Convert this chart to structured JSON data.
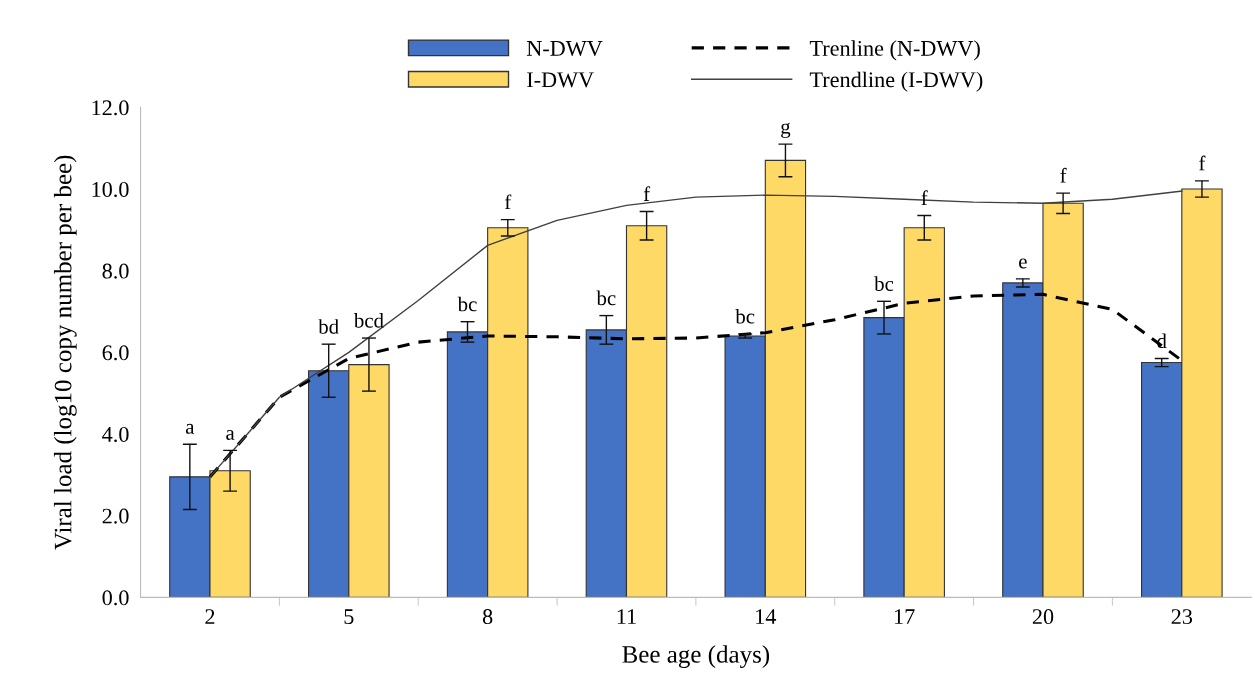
{
  "chart_data": {
    "type": "bar",
    "xlabel": "Bee age (days)",
    "ylabel": "Viral load (log10 copy number per bee)",
    "x": [
      2,
      5,
      8,
      11,
      14,
      17,
      20,
      23
    ],
    "xlim": [
      0.5,
      24.5
    ],
    "xticks": [
      2,
      5,
      8,
      11,
      14,
      17,
      20,
      23
    ],
    "ylim": [
      0,
      12
    ],
    "yticks": [
      {
        "value": 0,
        "label": "0.0"
      },
      {
        "value": 2,
        "label": "2.0"
      },
      {
        "value": 4,
        "label": "4.0"
      },
      {
        "value": 6,
        "label": "6.0"
      },
      {
        "value": 8,
        "label": "8.0"
      },
      {
        "value": 10,
        "label": "10.0"
      },
      {
        "value": 12,
        "label": "12.0"
      }
    ],
    "grid": false,
    "legend": "top",
    "series": [
      {
        "name": "N-DWV",
        "color": "#4472c4",
        "values": [
          2.95,
          5.55,
          6.5,
          6.55,
          6.4,
          6.85,
          7.7,
          5.75
        ],
        "errors": [
          0.8,
          0.65,
          0.25,
          0.35,
          0.05,
          0.4,
          0.1,
          0.1
        ],
        "value_labels": [
          "a",
          "bd",
          "bc",
          "bc",
          "bc",
          "bc",
          "e",
          "d"
        ]
      },
      {
        "name": "I-DWV",
        "color": "#ffd966",
        "values": [
          3.1,
          5.7,
          9.05,
          9.1,
          10.7,
          9.05,
          9.65,
          10.0
        ],
        "errors": [
          0.5,
          0.65,
          0.2,
          0.35,
          0.4,
          0.3,
          0.25,
          0.2
        ],
        "value_labels": [
          "a",
          "bcd",
          "f",
          "f",
          "g",
          "f",
          "f",
          "f"
        ]
      },
      {
        "name": "Trenline (N-DWV)",
        "type": "line",
        "color": "#000000",
        "line_style": "dashed",
        "x": [
          2,
          3.5,
          5,
          6.5,
          8,
          9.5,
          11,
          12.5,
          14,
          15.5,
          17,
          18.5,
          20,
          21.5,
          23
        ],
        "values": [
          2.95,
          4.9,
          5.85,
          6.25,
          6.4,
          6.38,
          6.33,
          6.35,
          6.48,
          6.8,
          7.2,
          7.38,
          7.42,
          7.05,
          5.8
        ]
      },
      {
        "name": "Trendline (I-DWV)",
        "type": "line",
        "color": "#404040",
        "line_style": "solid",
        "x": [
          2,
          3.5,
          5,
          6.5,
          8,
          9.5,
          11,
          12.5,
          14,
          15.5,
          17,
          18.5,
          20,
          21.5,
          23
        ],
        "values": [
          2.95,
          4.9,
          6.0,
          7.27,
          8.62,
          9.23,
          9.6,
          9.8,
          9.85,
          9.82,
          9.75,
          9.68,
          9.65,
          9.75,
          9.95
        ]
      }
    ]
  }
}
